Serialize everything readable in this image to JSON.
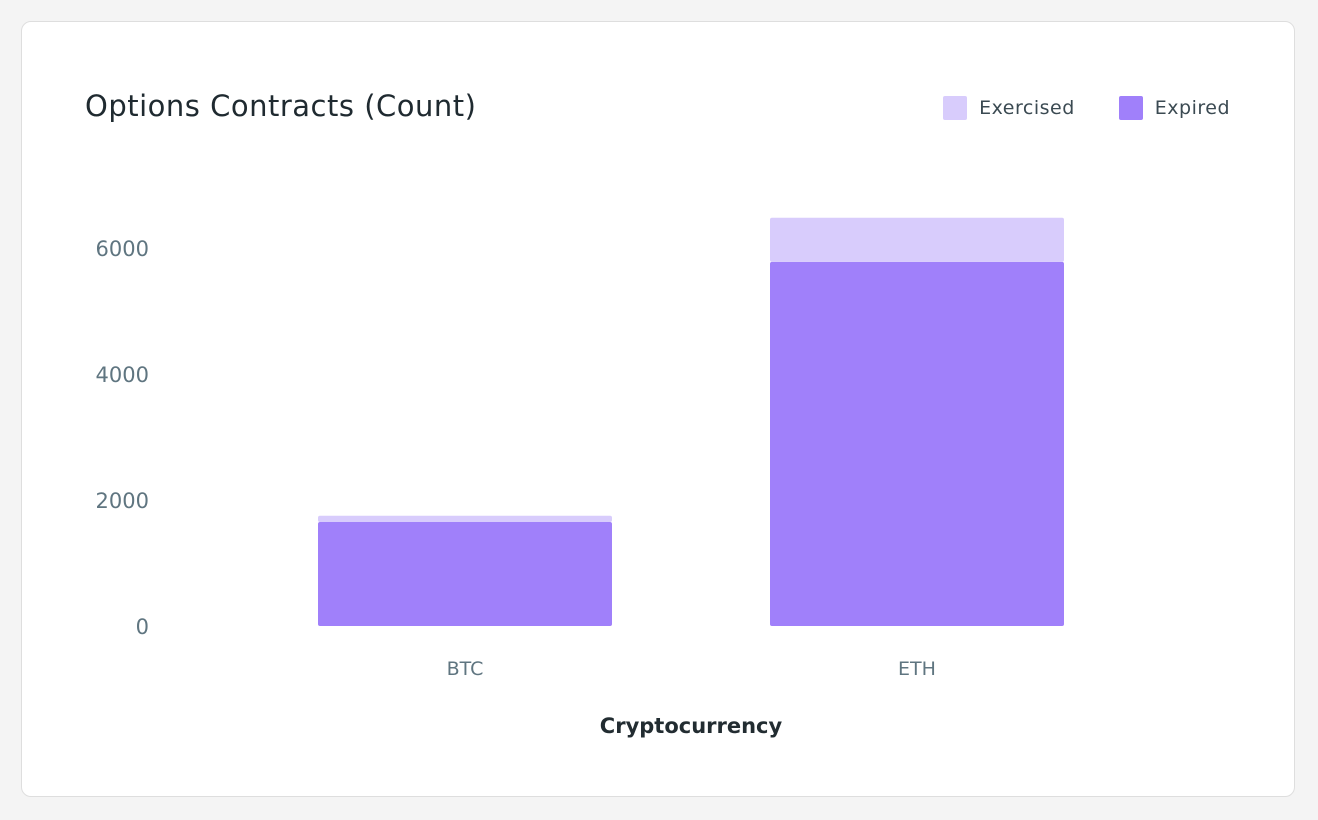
{
  "chart_data": {
    "type": "bar",
    "stacked": true,
    "title": "Options Contracts (Count)",
    "xlabel": "Cryptocurrency",
    "ylabel": "",
    "categories": [
      "BTC",
      "ETH"
    ],
    "series": [
      {
        "name": "Expired",
        "values": [
          1650,
          5780
        ],
        "color": "#a080fa"
      },
      {
        "name": "Exercised",
        "values": [
          100,
          700
        ],
        "color": "#d8ccfc"
      }
    ],
    "yticks": [
      0,
      2000,
      4000,
      6000
    ],
    "ylim": [
      0,
      6800
    ],
    "grid": false,
    "legend_position": "top-right"
  },
  "legend": [
    {
      "label": "Exercised",
      "color": "#d8ccfc"
    },
    {
      "label": "Expired",
      "color": "#a080fa"
    }
  ]
}
